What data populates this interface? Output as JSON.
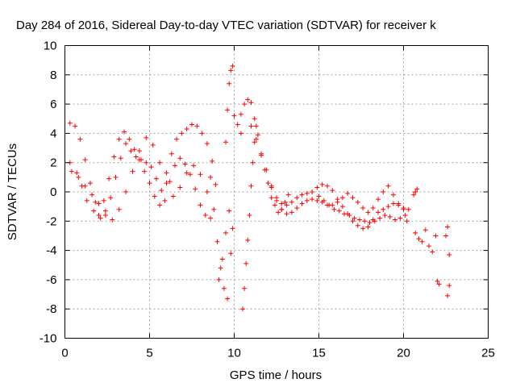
{
  "chart_data": {
    "type": "scatter",
    "title": "Day 284 of 2016, Sidereal Day-to-day VTEC variation (SDTVAR) for receiver k",
    "xlabel": "GPS time / hours",
    "ylabel": "SDTVAR / TECUs",
    "xlim": [
      0,
      25
    ],
    "ylim": [
      -10,
      10
    ],
    "xticks": [
      "0",
      "5",
      "10",
      "15",
      "20",
      "25"
    ],
    "yticks": [
      "10",
      "8",
      "6",
      "4",
      "2",
      "0",
      "-2",
      "-4",
      "-6",
      "-8",
      "-10"
    ],
    "grid": true,
    "marker": "plus",
    "color": "#ff0000",
    "series": [
      {
        "x": [
          0.3,
          0.6,
          0.9,
          1.2,
          1.5,
          1.8,
          2.1,
          2.4,
          2.7,
          3.0,
          3.3,
          3.6,
          3.9,
          4.2,
          4.5,
          4.8,
          5.1,
          5.4,
          5.7,
          6.0,
          6.3,
          6.6,
          6.9,
          7.2,
          7.5,
          7.8,
          8.1,
          8.4,
          8.7,
          8.9
        ],
        "y": [
          4.7,
          4.5,
          3.6,
          2.2,
          0.6,
          -0.7,
          -1.8,
          -1.6,
          -0.4,
          1.0,
          2.3,
          3.3,
          2.8,
          2.4,
          2.2,
          2.0,
          1.7,
          0.9,
          0.1,
          1.3,
          2.6,
          3.6,
          4.0,
          4.3,
          4.6,
          4.5,
          4.0,
          3.3,
          2.1,
          0.5
        ]
      },
      {
        "x": [
          0.3,
          0.7,
          1.0,
          1.3,
          1.7,
          2.0,
          2.3,
          2.6,
          2.9,
          3.2,
          3.5,
          3.8,
          4.1,
          4.4,
          4.7,
          5.0,
          5.3,
          5.6,
          5.9,
          6.2,
          6.5,
          6.8,
          7.1,
          7.4,
          7.7,
          8.0,
          8.3,
          8.6
        ],
        "y": [
          2.0,
          1.3,
          0.4,
          -0.6,
          -1.3,
          -1.6,
          -0.6,
          0.9,
          2.4,
          3.6,
          4.1,
          3.6,
          2.9,
          2.2,
          1.4,
          0.6,
          -0.3,
          -0.9,
          -0.6,
          0.7,
          1.8,
          2.3,
          1.9,
          1.2,
          0.2,
          -0.9,
          -1.6,
          -1.8
        ]
      },
      {
        "x": [
          0.4,
          0.8,
          1.2,
          1.6,
          2.0,
          2.4,
          2.8,
          3.2,
          3.6,
          4.0,
          4.4,
          4.8,
          5.2,
          5.6,
          6.0,
          6.4,
          6.8,
          7.2,
          7.6,
          8.0,
          8.4
        ],
        "y": [
          1.4,
          1.0,
          0.4,
          -0.2,
          -0.8,
          -1.3,
          -1.9,
          -1.2,
          0.0,
          1.4,
          2.8,
          3.7,
          3.2,
          2.0,
          0.6,
          -0.3,
          0.3,
          1.3,
          1.8,
          1.2,
          0.0
        ]
      },
      {
        "x": [
          8.6,
          8.8,
          9.0,
          9.2,
          9.4,
          9.6,
          9.1,
          9.3,
          9.5,
          9.7,
          9.8,
          9.9
        ],
        "y": [
          1.0,
          -1.2,
          -3.4,
          -5.2,
          -6.6,
          -7.3,
          -6.0,
          -4.6,
          -2.8,
          -1.3,
          -4.2,
          -2.5
        ]
      },
      {
        "x": [
          9.5,
          9.6,
          9.7,
          9.8,
          9.9,
          10.0,
          10.2,
          10.4
        ],
        "y": [
          3.4,
          5.6,
          7.4,
          8.3,
          8.6,
          5.2,
          4.6,
          4.0
        ]
      },
      {
        "x": [
          10.5,
          10.6,
          10.7,
          10.8,
          10.9,
          11.0,
          11.1,
          11.2,
          11.3
        ],
        "y": [
          -8.0,
          -6.6,
          -4.9,
          -3.3,
          -1.6,
          0.4,
          2.0,
          3.4,
          4.5
        ]
      },
      {
        "x": [
          10.4,
          10.6,
          10.8,
          11.0,
          11.2,
          11.4,
          11.6,
          11.8,
          12.0,
          12.2,
          12.4,
          12.6,
          12.8,
          13.0,
          13.2
        ],
        "y": [
          5.3,
          6.0,
          6.3,
          6.1,
          5.0,
          3.9,
          2.6,
          1.5,
          0.6,
          -0.4,
          -0.9,
          -1.4,
          -1.2,
          -0.7,
          -0.2
        ]
      },
      {
        "x": [
          11.0,
          11.3,
          11.6,
          11.9,
          12.2,
          12.5,
          12.8,
          13.1,
          13.4,
          13.7,
          14.0,
          14.3,
          14.6,
          14.9,
          15.2,
          15.5,
          15.8,
          16.1,
          16.4,
          16.7,
          17.0,
          17.3,
          17.6,
          17.9,
          18.2,
          18.5,
          18.8,
          19.1,
          19.4,
          19.7,
          20.0,
          20.2
        ],
        "y": [
          4.5,
          3.6,
          2.5,
          1.5,
          0.4,
          -0.4,
          -0.8,
          -0.9,
          -0.7,
          -0.4,
          -0.2,
          -0.1,
          0.0,
          0.3,
          0.5,
          0.4,
          0.1,
          -0.5,
          -1.0,
          -1.5,
          -2.0,
          -2.3,
          -2.5,
          -2.4,
          -1.9,
          -1.4,
          -1.2,
          -1.0,
          -0.8,
          -0.9,
          -1.2,
          -2.0
        ]
      },
      {
        "x": [
          12.2,
          12.5,
          12.8,
          13.1,
          13.4,
          13.7,
          14.0,
          14.3,
          14.6,
          14.9,
          15.2,
          15.5,
          15.8,
          16.1,
          16.4,
          16.7,
          17.0,
          17.3,
          17.6,
          17.9,
          18.2,
          18.5,
          18.8,
          19.1,
          19.4,
          19.7,
          20.0,
          20.3
        ],
        "y": [
          0.3,
          -0.6,
          -1.2,
          -1.5,
          -1.4,
          -1.1,
          -0.8,
          -0.6,
          -0.5,
          -0.6,
          -0.7,
          -0.9,
          -0.9,
          -0.7,
          -0.4,
          -0.1,
          -0.4,
          -0.7,
          -1.1,
          -1.4,
          -1.1,
          -0.5,
          0.0,
          0.4,
          -0.2,
          -0.8,
          -1.1,
          -1.2
        ]
      },
      {
        "x": [
          15.0,
          15.3,
          15.6,
          15.9,
          16.2,
          16.5,
          16.8,
          17.1,
          17.4,
          17.7,
          18.0,
          18.3,
          18.6,
          18.9,
          19.2,
          19.5,
          19.8,
          20.1
        ],
        "y": [
          -0.3,
          -0.6,
          -0.9,
          -1.2,
          -1.3,
          -1.5,
          -1.6,
          -1.8,
          -1.9,
          -2.0,
          -2.1,
          -2.0,
          -1.8,
          -1.6,
          -1.7,
          -1.9,
          -1.8,
          -1.6
        ]
      },
      {
        "x": [
          20.6,
          20.7,
          20.8,
          20.7,
          20.9,
          21.1,
          21.3,
          21.5,
          21.7,
          21.9,
          22.0,
          22.1,
          22.5,
          22.6,
          22.7,
          22.7,
          22.6
        ],
        "y": [
          -0.2,
          0.0,
          0.2,
          -2.8,
          -3.2,
          -3.4,
          -2.6,
          -3.7,
          -4.1,
          -3.0,
          -6.1,
          -6.3,
          -3.0,
          -2.4,
          -4.3,
          -6.4,
          -7.1
        ]
      }
    ]
  }
}
